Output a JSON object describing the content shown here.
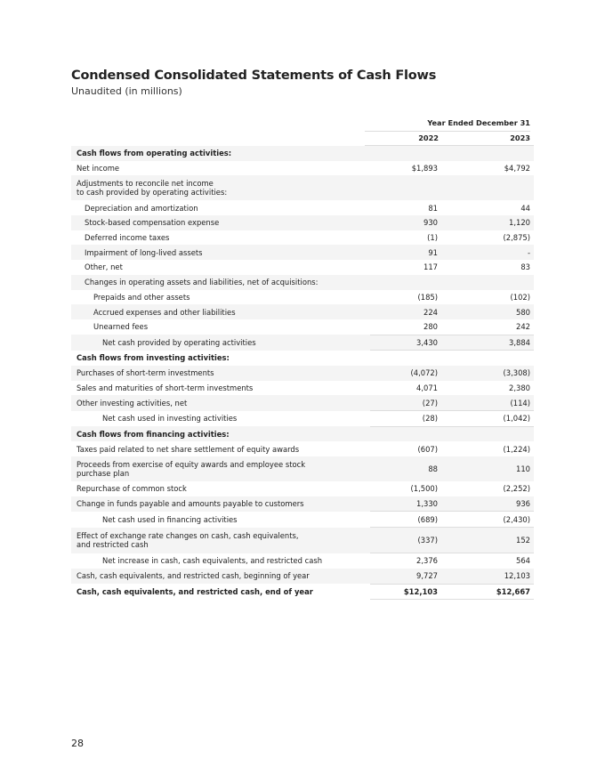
{
  "title": "Condensed Consolidated Statements of Cash Flows",
  "subtitle": "Unaudited (in millions)",
  "period_header": "Year Ended December 31",
  "years": [
    "2022",
    "2023"
  ],
  "rows": [
    {
      "label": "Cash flows from operating activities:",
      "v2022": "",
      "v2023": "",
      "indent": 0,
      "bold": true
    },
    {
      "label": "Net income",
      "v2022": "$1,893",
      "v2023": "$4,792",
      "indent": 0
    },
    {
      "label": "Adjustments to reconcile net income\nto cash provided by operating activities:",
      "v2022": "",
      "v2023": "",
      "indent": 0
    },
    {
      "label": "Depreciation and amortization",
      "v2022": "81",
      "v2023": "44",
      "indent": 1
    },
    {
      "label": "Stock-based compensation expense",
      "v2022": "930",
      "v2023": "1,120",
      "indent": 1
    },
    {
      "label": "Deferred income taxes",
      "v2022": "(1)",
      "v2023": "(2,875)",
      "indent": 1
    },
    {
      "label": "Impairment of long-lived assets",
      "v2022": "91",
      "v2023": "-",
      "indent": 1
    },
    {
      "label": "Other, net",
      "v2022": "117",
      "v2023": "83",
      "indent": 1
    },
    {
      "label": "Changes in operating assets and liabilities, net of acquisitions:",
      "v2022": "",
      "v2023": "",
      "indent": 1
    },
    {
      "label": "Prepaids and other assets",
      "v2022": "(185)",
      "v2023": "(102)",
      "indent": 2
    },
    {
      "label": "Accrued expenses and other liabilities",
      "v2022": "224",
      "v2023": "580",
      "indent": 2
    },
    {
      "label": "Unearned fees",
      "v2022": "280",
      "v2023": "242",
      "indent": 2,
      "underline": true
    },
    {
      "label": "Net cash provided by operating activities",
      "v2022": "3,430",
      "v2023": "3,884",
      "indent": 3,
      "underline": true
    },
    {
      "label": "Cash flows from investing activities:",
      "v2022": "",
      "v2023": "",
      "indent": 0,
      "bold": true
    },
    {
      "label": "Purchases of short-term investments",
      "v2022": "(4,072)",
      "v2023": "(3,308)",
      "indent": 0
    },
    {
      "label": "Sales and maturities of short-term investments",
      "v2022": "4,071",
      "v2023": "2,380",
      "indent": 0
    },
    {
      "label": "Other investing activities, net",
      "v2022": "(27)",
      "v2023": "(114)",
      "indent": 0,
      "underline": true
    },
    {
      "label": "Net cash used in investing activities",
      "v2022": "(28)",
      "v2023": "(1,042)",
      "indent": 3,
      "underline": true
    },
    {
      "label": "Cash flows from financing activities:",
      "v2022": "",
      "v2023": "",
      "indent": 0,
      "bold": true
    },
    {
      "label": "Taxes paid related to net share settlement of equity awards",
      "v2022": "(607)",
      "v2023": "(1,224)",
      "indent": 0
    },
    {
      "label": "Proceeds from exercise of equity awards and employee stock\npurchase plan",
      "v2022": "88",
      "v2023": "110",
      "indent": 0
    },
    {
      "label": "Repurchase of common stock",
      "v2022": "(1,500)",
      "v2023": "(2,252)",
      "indent": 0
    },
    {
      "label": "Change in funds payable and amounts payable to customers",
      "v2022": "1,330",
      "v2023": "936",
      "indent": 0,
      "underline": true
    },
    {
      "label": "Net cash used in financing activities",
      "v2022": "(689)",
      "v2023": "(2,430)",
      "indent": 3,
      "underline": true
    },
    {
      "label": "Effect of exchange rate changes on cash, cash equivalents,\nand restricted cash",
      "v2022": "(337)",
      "v2023": "152",
      "indent": 0,
      "underline": true
    },
    {
      "label": "Net increase in cash, cash equivalents, and restricted cash",
      "v2022": "2,376",
      "v2023": "564",
      "indent": 3
    },
    {
      "label": "Cash, cash equivalents, and restricted cash, beginning of year",
      "v2022": "9,727",
      "v2023": "12,103",
      "indent": 0,
      "underline": true
    },
    {
      "label": "Cash, cash equivalents, and restricted cash, end of year",
      "v2022": "$12,103",
      "v2023": "$12,667",
      "indent": 0,
      "bold": true,
      "underline": true
    }
  ],
  "page_number": "28"
}
